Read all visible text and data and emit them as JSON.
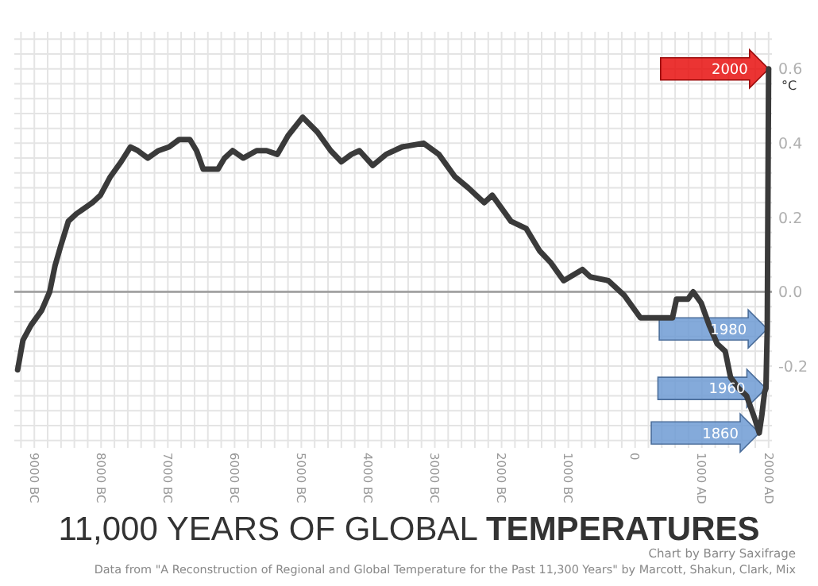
{
  "chart_data": {
    "type": "line",
    "title": "11,000 YEARS OF GLOBAL TEMPERATURES",
    "ylabel": "°C",
    "annotations": [
      {
        "text": "2000",
        "x": 2000,
        "y": 0.6
      },
      {
        "text": "1980",
        "x": 1980,
        "y": -0.1
      },
      {
        "text": "1960",
        "x": 1960,
        "y": -0.26
      },
      {
        "text": "1860",
        "x": 1860,
        "y": -0.38
      },
      "Chart by Barry Saxifrage",
      "Data from \"A Reconstruction of Regional and Global Temperature for the Past 11,300 Years\" by Marcott, Shakun, Clark, Mix"
    ],
    "xlim": [
      -9300,
      2050
    ],
    "ylim": [
      -0.42,
      0.7
    ],
    "xticks": [
      {
        "value": -9000,
        "label": "9000 BC"
      },
      {
        "value": -8000,
        "label": "8000 BC"
      },
      {
        "value": -7000,
        "label": "7000 BC"
      },
      {
        "value": -6000,
        "label": "6000 BC"
      },
      {
        "value": -5000,
        "label": "5000 BC"
      },
      {
        "value": -4000,
        "label": "4000 BC"
      },
      {
        "value": -3000,
        "label": "3000 BC"
      },
      {
        "value": -2000,
        "label": "2000 BC"
      },
      {
        "value": -1000,
        "label": "1000 BC"
      },
      0,
      {
        "value": 1000,
        "label": "1000 AD"
      },
      {
        "value": 2000,
        "label": "2000 AD"
      }
    ],
    "yticks": [
      -0.2,
      {
        "value": 0,
        "label": "0.0"
      },
      0.2,
      0.4,
      0.6
    ],
    "grid": true,
    "marker": "none",
    "line_style": "solid",
    "ref_lines": [
      {
        "axis": "y",
        "value": 0,
        "color": "#9a9a9a"
      }
    ],
    "series": [
      {
        "color": "#3a3a3a",
        "x": [
          -9250,
          -9170,
          -9050,
          -8890,
          -8770,
          -8690,
          -8610,
          -8490,
          -8370,
          -8290,
          -8130,
          -8010,
          -7860,
          -7700,
          -7560,
          -7450,
          -7300,
          -7140,
          -6980,
          -6830,
          -6670,
          -6570,
          -6470,
          -6350,
          -6250,
          -6150,
          -6030,
          -5870,
          -5670,
          -5520,
          -5360,
          -5200,
          -4980,
          -4760,
          -4560,
          -4400,
          -4250,
          -4130,
          -3930,
          -3730,
          -3490,
          -3170,
          -2940,
          -2700,
          -2500,
          -2260,
          -2140,
          -1860,
          -1630,
          -1430,
          -1270,
          -1070,
          -790,
          -670,
          -400,
          -160,
          80,
          320,
          560,
          620,
          790,
          870,
          990,
          1110,
          1230,
          1350,
          1430,
          1550,
          1670,
          1790,
          1860,
          1900,
          1940,
          1960,
          1980,
          2000
        ],
        "values": [
          -0.21,
          -0.13,
          -0.09,
          -0.05,
          0.0,
          0.07,
          0.12,
          0.19,
          0.21,
          0.22,
          0.24,
          0.26,
          0.31,
          0.35,
          0.39,
          0.38,
          0.36,
          0.38,
          0.39,
          0.41,
          0.41,
          0.38,
          0.33,
          0.33,
          0.33,
          0.36,
          0.38,
          0.36,
          0.38,
          0.38,
          0.37,
          0.42,
          0.47,
          0.43,
          0.38,
          0.35,
          0.37,
          0.38,
          0.34,
          0.37,
          0.39,
          0.4,
          0.37,
          0.31,
          0.28,
          0.24,
          0.26,
          0.19,
          0.17,
          0.11,
          0.08,
          0.03,
          0.06,
          0.04,
          0.03,
          -0.01,
          -0.07,
          -0.07,
          -0.07,
          -0.02,
          -0.02,
          0.0,
          -0.03,
          -0.09,
          -0.14,
          -0.16,
          -0.23,
          -0.26,
          -0.28,
          -0.34,
          -0.38,
          -0.33,
          -0.27,
          -0.26,
          -0.1,
          0.6
        ]
      }
    ]
  }
}
